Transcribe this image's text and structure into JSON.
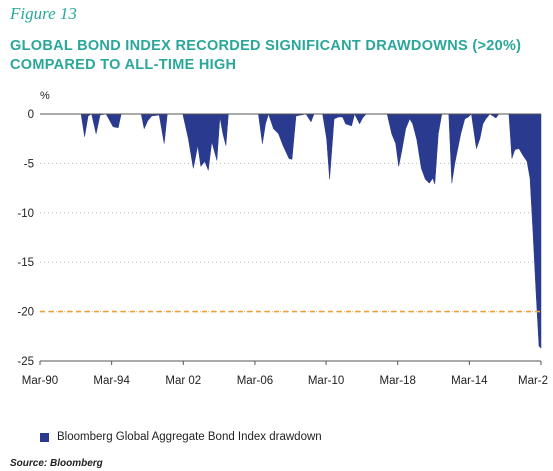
{
  "figure_label": "Figure 13",
  "title": "GLOBAL BOND INDEX RECORDED SIGNIFICANT DRAWDOWNS (>20%)\nCOMPARED TO ALL-TIME HIGH",
  "source": "Source: Bloomberg",
  "colors": {
    "accent": "#2aa79b",
    "series": "#2a3a8f",
    "threshold": "#f0a030",
    "grid": "#b9b9b9"
  },
  "chart_data": {
    "type": "area",
    "ylabel": "%",
    "ylim": [
      -25,
      0
    ],
    "yticks": [
      0,
      -5,
      -10,
      -15,
      -20,
      -25
    ],
    "xlim": [
      0,
      100
    ],
    "xtick_labels": [
      "Mar-90",
      "Mar-94",
      "Mar 02",
      "Mar-06",
      "Mar-10",
      "Mar-18",
      "Mar-14",
      "Mar-2"
    ],
    "xtick_positions": [
      0,
      14.3,
      28.6,
      42.9,
      57.1,
      71.4,
      85.7,
      100
    ],
    "grid": "horizontal dotted",
    "threshold": -20,
    "legend_position": "bottom-left",
    "series": [
      {
        "name": "Bloomberg Global Aggregate Bond Index drawdown",
        "points": [
          [
            0,
            0
          ],
          [
            8.2,
            0
          ],
          [
            8.9,
            -2.3
          ],
          [
            9.6,
            -0.2
          ],
          [
            10.3,
            0
          ],
          [
            11.2,
            -2
          ],
          [
            12.0,
            -0.1
          ],
          [
            13.2,
            0
          ],
          [
            14.6,
            -1.3
          ],
          [
            15.6,
            -1.4
          ],
          [
            16.2,
            0
          ],
          [
            20.2,
            0
          ],
          [
            20.8,
            -1.5
          ],
          [
            21.5,
            -0.7
          ],
          [
            22.3,
            -0.2
          ],
          [
            23.8,
            -0.1
          ],
          [
            24.8,
            -3
          ],
          [
            25.4,
            0
          ],
          [
            28.5,
            0
          ],
          [
            29.6,
            -2.5
          ],
          [
            30.6,
            -5.5
          ],
          [
            31.5,
            -3.2
          ],
          [
            32.1,
            -5.3
          ],
          [
            32.9,
            -4.8
          ],
          [
            33.6,
            -5.7
          ],
          [
            34.3,
            -2.8
          ],
          [
            35.3,
            -4.7
          ],
          [
            35.9,
            -0.3
          ],
          [
            36.5,
            -2
          ],
          [
            37.1,
            -3.2
          ],
          [
            37.6,
            0
          ],
          [
            43.6,
            0
          ],
          [
            44.4,
            -3
          ],
          [
            45.0,
            -1
          ],
          [
            45.6,
            0
          ],
          [
            46.6,
            -1.5
          ],
          [
            47.6,
            -2
          ],
          [
            48.5,
            -3.2
          ],
          [
            49.7,
            -4.5
          ],
          [
            50.3,
            -4.6
          ],
          [
            51.1,
            -0.2
          ],
          [
            53.1,
            0
          ],
          [
            54.1,
            -0.8
          ],
          [
            54.7,
            0
          ],
          [
            56.4,
            0
          ],
          [
            57.2,
            -2.5
          ],
          [
            57.8,
            -6.6
          ],
          [
            58.7,
            -0.5
          ],
          [
            59.6,
            -0.3
          ],
          [
            60.4,
            -0.3
          ],
          [
            61.0,
            -1
          ],
          [
            62.2,
            -1.2
          ],
          [
            62.8,
            0
          ],
          [
            63.8,
            -1
          ],
          [
            64.4,
            -0.4
          ],
          [
            65.1,
            0
          ],
          [
            69.3,
            0
          ],
          [
            70.2,
            -2
          ],
          [
            71.0,
            -3
          ],
          [
            71.6,
            -5.3
          ],
          [
            72.3,
            -3.5
          ],
          [
            73.0,
            -1.5
          ],
          [
            73.8,
            -0.5
          ],
          [
            74.4,
            -1
          ],
          [
            75.2,
            -2.6
          ],
          [
            76.1,
            -5.5
          ],
          [
            76.9,
            -6.6
          ],
          [
            77.7,
            -7
          ],
          [
            78.4,
            -6.5
          ],
          [
            78.8,
            -7.1
          ],
          [
            79.5,
            -2
          ],
          [
            80.2,
            0
          ],
          [
            81.6,
            0
          ],
          [
            82.2,
            -7
          ],
          [
            82.8,
            -5
          ],
          [
            83.4,
            -3.5
          ],
          [
            84.0,
            -2
          ],
          [
            84.8,
            -0.5
          ],
          [
            85.5,
            -0.3
          ],
          [
            86.1,
            0
          ],
          [
            87.1,
            -3.5
          ],
          [
            87.8,
            -2.5
          ],
          [
            88.4,
            -1
          ],
          [
            89.0,
            -0.5
          ],
          [
            89.8,
            0
          ],
          [
            91.0,
            -0.4
          ],
          [
            91.6,
            0
          ],
          [
            93.6,
            0
          ],
          [
            94.2,
            -4.5
          ],
          [
            94.8,
            -3.6
          ],
          [
            95.6,
            -3.5
          ],
          [
            96.4,
            -4.2
          ],
          [
            97.2,
            -4.8
          ],
          [
            97.8,
            -6.5
          ],
          [
            98.4,
            -12
          ],
          [
            99.0,
            -18
          ],
          [
            99.6,
            -23.5
          ],
          [
            100,
            -23.7
          ],
          [
            100,
            0
          ]
        ]
      }
    ]
  }
}
